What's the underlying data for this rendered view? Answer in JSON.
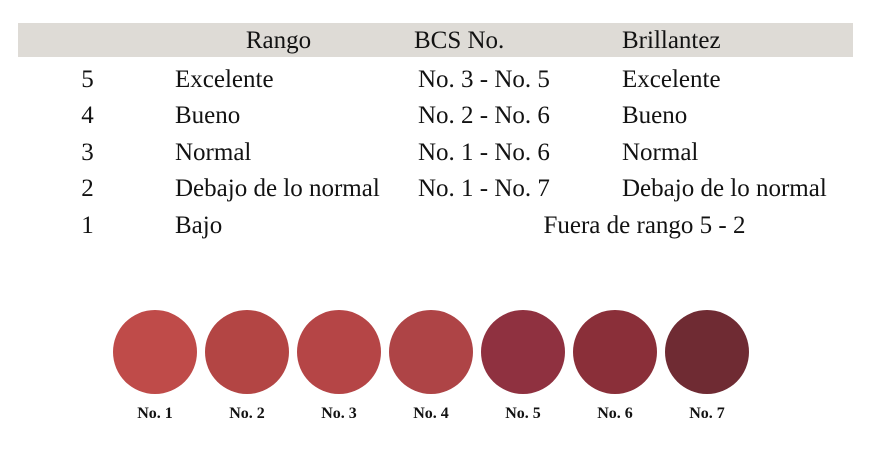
{
  "table": {
    "header_bg": "#dedbd6",
    "columns": {
      "rank": "",
      "rango": "Rango",
      "bcs": "BCS No.",
      "brillantez": "Brillantez"
    },
    "rows": [
      {
        "rank": "5",
        "rango": "Excelente",
        "bcs": "No. 3 - No. 5",
        "brillantez": "Excelente"
      },
      {
        "rank": "4",
        "rango": "Bueno",
        "bcs": "No. 2 - No. 6",
        "brillantez": "Bueno"
      },
      {
        "rank": "3",
        "rango": "Normal",
        "bcs": "No. 1 - No. 6",
        "brillantez": "Normal"
      },
      {
        "rank": "2",
        "rango": "Debajo de lo normal",
        "bcs": "No. 1 - No. 7",
        "brillantez": "Debajo de lo normal"
      }
    ],
    "last_row": {
      "rank": "1",
      "rango": "Bajo",
      "merged": "Fuera de rango 5 - 2"
    }
  },
  "color_scale": {
    "swatches": [
      {
        "label": "No. 1",
        "color": "#bf4b49"
      },
      {
        "label": "No. 2",
        "color": "#b34544"
      },
      {
        "label": "No. 3",
        "color": "#b54546"
      },
      {
        "label": "No. 4",
        "color": "#ae4446"
      },
      {
        "label": "No. 5",
        "color": "#8f3140"
      },
      {
        "label": "No. 6",
        "color": "#8a2f39"
      },
      {
        "label": "No. 7",
        "color": "#6f2b33"
      }
    ]
  }
}
